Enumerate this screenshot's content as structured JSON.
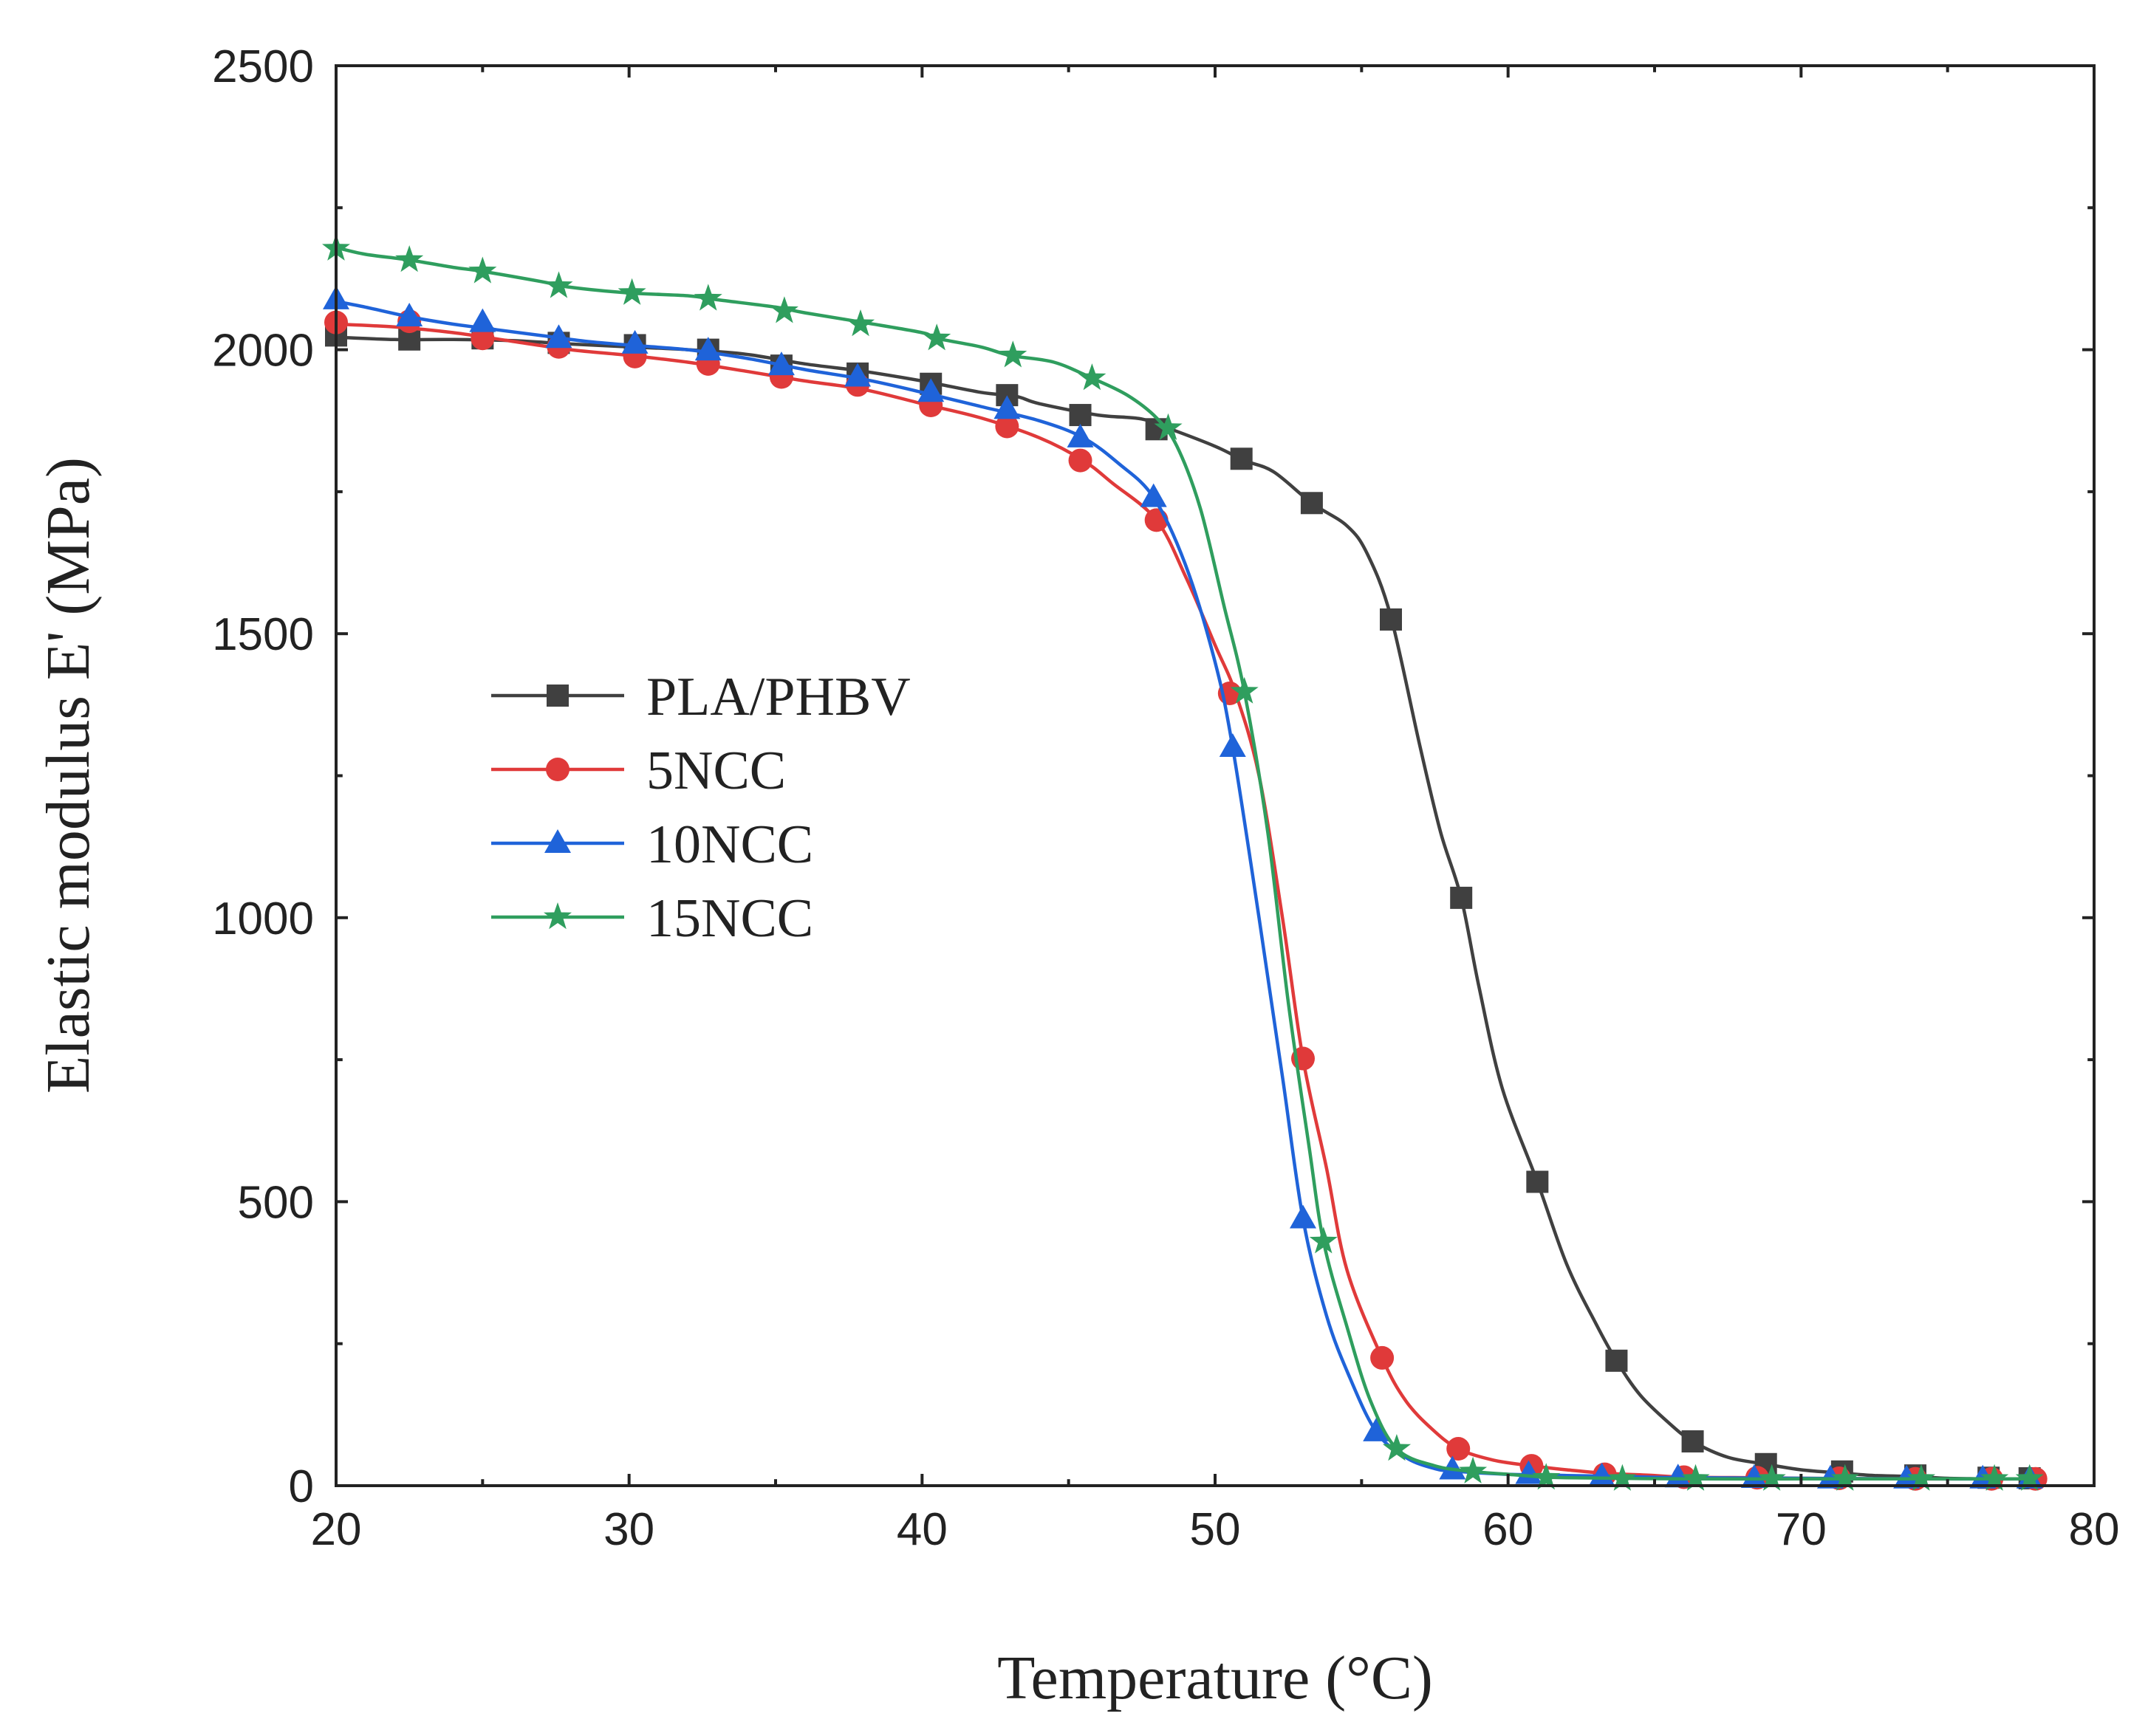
{
  "chart_data": {
    "type": "line",
    "title": "",
    "xlabel": "Temperature (°C)",
    "ylabel": "Elastic modulus E' (MPa)",
    "xlim": [
      20,
      80
    ],
    "ylim": [
      0,
      2500
    ],
    "xticks": [
      20,
      30,
      40,
      50,
      60,
      70,
      80
    ],
    "yticks": [
      0,
      500,
      1000,
      1500,
      2000,
      2500
    ],
    "grid": false,
    "legend_position": "center-left",
    "series": [
      {
        "name": "PLA/PHBV",
        "color": "#404040",
        "marker": "square",
        "line": [
          [
            20,
            2022
          ],
          [
            22,
            2018
          ],
          [
            24,
            2018
          ],
          [
            26,
            2016
          ],
          [
            28,
            2010
          ],
          [
            30,
            2005
          ],
          [
            32,
            2000
          ],
          [
            34,
            1992
          ],
          [
            36,
            1975
          ],
          [
            38,
            1962
          ],
          [
            40,
            1945
          ],
          [
            42,
            1925
          ],
          [
            43.2,
            1918
          ],
          [
            44,
            1905
          ],
          [
            46,
            1885
          ],
          [
            47.5,
            1878
          ],
          [
            48.5,
            1860
          ],
          [
            50,
            1830
          ],
          [
            51,
            1805
          ],
          [
            52,
            1785
          ],
          [
            53.3,
            1730
          ],
          [
            54.5,
            1690
          ],
          [
            55.2,
            1640
          ],
          [
            56,
            1530
          ],
          [
            57,
            1300
          ],
          [
            57.7,
            1150
          ],
          [
            58.4,
            1035
          ],
          [
            59,
            880
          ],
          [
            59.8,
            700
          ],
          [
            61,
            535
          ],
          [
            62,
            390
          ],
          [
            63,
            285
          ],
          [
            63.7,
            220
          ],
          [
            64.5,
            160
          ],
          [
            65.5,
            110
          ],
          [
            66.3,
            78
          ],
          [
            67.5,
            50
          ],
          [
            68.8,
            38
          ],
          [
            70,
            28
          ],
          [
            71.4,
            22
          ],
          [
            72.5,
            18
          ],
          [
            73.9,
            16
          ],
          [
            75,
            13
          ],
          [
            76.4,
            12
          ],
          [
            77.8,
            12
          ]
        ],
        "markers": [
          [
            20,
            2025
          ],
          [
            22.5,
            2018
          ],
          [
            25,
            2020
          ],
          [
            27.6,
            2012
          ],
          [
            30.2,
            2008
          ],
          [
            32.7,
            2000
          ],
          [
            35.2,
            1972
          ],
          [
            37.8,
            1958
          ],
          [
            40.3,
            1940
          ],
          [
            42.9,
            1920
          ],
          [
            45.4,
            1885
          ],
          [
            48,
            1860
          ],
          [
            50.9,
            1808
          ],
          [
            53.3,
            1730
          ],
          [
            56,
            1525
          ],
          [
            58.4,
            1035
          ],
          [
            61,
            535
          ],
          [
            63.7,
            220
          ],
          [
            66.3,
            78
          ],
          [
            68.8,
            38
          ],
          [
            71.4,
            25
          ],
          [
            73.9,
            18
          ],
          [
            76.4,
            14
          ],
          [
            77.8,
            13
          ]
        ]
      },
      {
        "name": "5NCC",
        "color": "#e03a3a",
        "marker": "circle",
        "line": [
          [
            20,
            2045
          ],
          [
            22,
            2040
          ],
          [
            24,
            2030
          ],
          [
            26,
            2015
          ],
          [
            28,
            2000
          ],
          [
            30,
            1990
          ],
          [
            32,
            1978
          ],
          [
            34,
            1962
          ],
          [
            36,
            1945
          ],
          [
            38,
            1930
          ],
          [
            40,
            1905
          ],
          [
            42,
            1880
          ],
          [
            44,
            1845
          ],
          [
            45.5,
            1805
          ],
          [
            46.5,
            1765
          ],
          [
            48,
            1700
          ],
          [
            49,
            1600
          ],
          [
            50,
            1480
          ],
          [
            50.7,
            1395
          ],
          [
            51.5,
            1250
          ],
          [
            52.3,
            1000
          ],
          [
            53,
            752
          ],
          [
            53.8,
            560
          ],
          [
            54.5,
            380
          ],
          [
            55.7,
            225
          ],
          [
            56.5,
            150
          ],
          [
            57.4,
            100
          ],
          [
            58.3,
            65
          ],
          [
            59.5,
            45
          ],
          [
            60.8,
            35
          ],
          [
            62,
            28
          ],
          [
            63.3,
            22
          ],
          [
            65,
            18
          ],
          [
            66,
            15
          ],
          [
            68.5,
            14
          ],
          [
            70,
            13
          ],
          [
            73.5,
            12
          ],
          [
            76.5,
            12
          ],
          [
            78,
            12
          ]
        ],
        "markers": [
          [
            20,
            2048
          ],
          [
            22.5,
            2050
          ],
          [
            25,
            2020
          ],
          [
            27.6,
            2005
          ],
          [
            30.2,
            1988
          ],
          [
            32.7,
            1975
          ],
          [
            35.2,
            1952
          ],
          [
            37.8,
            1938
          ],
          [
            40.3,
            1902
          ],
          [
            42.9,
            1865
          ],
          [
            45.4,
            1805
          ],
          [
            48,
            1700
          ],
          [
            50.5,
            1395
          ],
          [
            53,
            752
          ],
          [
            55.7,
            225
          ],
          [
            58.3,
            65
          ],
          [
            60.8,
            35
          ],
          [
            63.3,
            20
          ],
          [
            66,
            15
          ],
          [
            68.5,
            14
          ],
          [
            71.3,
            13
          ],
          [
            73.9,
            12
          ],
          [
            76.5,
            12
          ],
          [
            78,
            12
          ]
        ]
      },
      {
        "name": "10NCC",
        "color": "#1f63d9",
        "marker": "triangle",
        "line": [
          [
            20,
            2085
          ],
          [
            21,
            2075
          ],
          [
            22.5,
            2058
          ],
          [
            24,
            2045
          ],
          [
            25.5,
            2035
          ],
          [
            27,
            2025
          ],
          [
            28.5,
            2015
          ],
          [
            30,
            2008
          ],
          [
            32,
            2000
          ],
          [
            34,
            1985
          ],
          [
            36,
            1965
          ],
          [
            38,
            1948
          ],
          [
            40,
            1925
          ],
          [
            42,
            1900
          ],
          [
            44,
            1875
          ],
          [
            45.5,
            1845
          ],
          [
            46.7,
            1800
          ],
          [
            47.9,
            1740
          ],
          [
            49,
            1620
          ],
          [
            50,
            1450
          ],
          [
            50.6,
            1300
          ],
          [
            51.5,
            1000
          ],
          [
            52.3,
            720
          ],
          [
            53,
            470
          ],
          [
            53.8,
            300
          ],
          [
            54.6,
            190
          ],
          [
            55.5,
            95
          ],
          [
            56.5,
            50
          ],
          [
            57.5,
            30
          ],
          [
            58.3,
            25
          ],
          [
            60,
            20
          ],
          [
            62,
            18
          ],
          [
            64,
            16
          ],
          [
            66,
            14
          ],
          [
            70,
            13
          ],
          [
            74,
            12
          ],
          [
            78,
            12
          ]
        ],
        "markers": [
          [
            20,
            2088
          ],
          [
            22.5,
            2058
          ],
          [
            25,
            2048
          ],
          [
            27.6,
            2020
          ],
          [
            30.2,
            2010
          ],
          [
            32.7,
            1998
          ],
          [
            35.2,
            1972
          ],
          [
            37.8,
            1952
          ],
          [
            40.3,
            1925
          ],
          [
            42.9,
            1895
          ],
          [
            45.4,
            1845
          ],
          [
            47.9,
            1740
          ],
          [
            50.6,
            1300
          ],
          [
            53,
            470
          ],
          [
            55.5,
            95
          ],
          [
            58.1,
            28
          ],
          [
            60.7,
            20
          ],
          [
            63.2,
            16
          ],
          [
            65.8,
            14
          ],
          [
            68.4,
            13
          ],
          [
            71,
            12
          ],
          [
            73.6,
            12
          ],
          [
            76.2,
            12
          ],
          [
            77.8,
            12
          ]
        ]
      },
      {
        "name": "15NCC",
        "color": "#2f9e5e",
        "marker": "star",
        "line": [
          [
            20,
            2180
          ],
          [
            21,
            2168
          ],
          [
            22.5,
            2158
          ],
          [
            24,
            2145
          ],
          [
            25,
            2138
          ],
          [
            27,
            2120
          ],
          [
            28,
            2110
          ],
          [
            30,
            2100
          ],
          [
            32,
            2095
          ],
          [
            33,
            2088
          ],
          [
            35,
            2075
          ],
          [
            36,
            2065
          ],
          [
            38,
            2048
          ],
          [
            40,
            2030
          ],
          [
            40.5,
            2020
          ],
          [
            42,
            2005
          ],
          [
            43,
            1990
          ],
          [
            44.5,
            1978
          ],
          [
            45.8,
            1950
          ],
          [
            47,
            1920
          ],
          [
            48,
            1880
          ],
          [
            48.7,
            1830
          ],
          [
            49.5,
            1720
          ],
          [
            50.3,
            1550
          ],
          [
            51,
            1398
          ],
          [
            51.8,
            1150
          ],
          [
            52.5,
            850
          ],
          [
            53.2,
            600
          ],
          [
            53.7,
            430
          ],
          [
            54.5,
            280
          ],
          [
            55.3,
            150
          ],
          [
            56.2,
            65
          ],
          [
            57.5,
            35
          ],
          [
            58.8,
            25
          ],
          [
            60,
            20
          ],
          [
            61,
            16
          ],
          [
            62,
            14
          ],
          [
            66,
            12
          ],
          [
            70,
            12
          ],
          [
            74,
            12
          ],
          [
            78,
            12
          ]
        ],
        "markers": [
          [
            20,
            2178
          ],
          [
            22.5,
            2158
          ],
          [
            25,
            2138
          ],
          [
            27.6,
            2112
          ],
          [
            30.1,
            2100
          ],
          [
            32.7,
            2090
          ],
          [
            35.3,
            2068
          ],
          [
            37.9,
            2045
          ],
          [
            40.5,
            2020
          ],
          [
            43.1,
            1990
          ],
          [
            45.8,
            1950
          ],
          [
            48.4,
            1862
          ],
          [
            51,
            1398
          ],
          [
            53.7,
            430
          ],
          [
            56.2,
            65
          ],
          [
            58.8,
            25
          ],
          [
            61.3,
            14
          ],
          [
            63.9,
            12
          ],
          [
            66.4,
            12
          ],
          [
            69,
            12
          ],
          [
            71.5,
            12
          ],
          [
            74.1,
            12
          ],
          [
            76.6,
            12
          ],
          [
            77.8,
            12
          ]
        ]
      }
    ]
  }
}
